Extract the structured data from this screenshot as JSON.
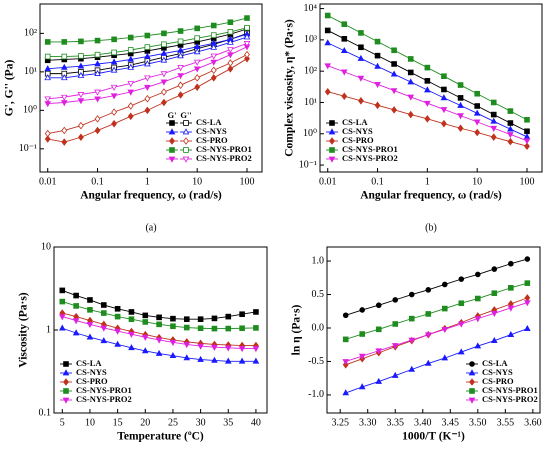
{
  "chart_data": [
    {
      "type": "line",
      "caption": "(a)",
      "xlabel": "Angular frequency, ω (rad/s)",
      "ylabel": "G', G'' (Pa)",
      "xlog": true,
      "ylog": true,
      "xlim": [
        0.007,
        200
      ],
      "ylim": [
        0.025,
        580
      ],
      "xticks": [
        0.01,
        0.1,
        1,
        10,
        100
      ],
      "yticks": [
        {
          "value": 0.1,
          "label": "10⁻¹"
        },
        {
          "value": 1,
          "label": "10⁰"
        },
        {
          "value": 10,
          "label": "10¹"
        },
        {
          "value": 100,
          "label": "10²"
        }
      ],
      "legend": "lower right",
      "legend_headers": [
        "G'",
        "G''"
      ],
      "x": [
        0.01,
        0.0215,
        0.0464,
        0.1,
        0.215,
        0.464,
        1,
        2.15,
        4.64,
        10,
        21.5,
        46.4,
        100
      ],
      "series": [
        {
          "name": "CS-LA",
          "color": "#000000",
          "marker": "square",
          "storage": [
            20,
            21,
            22,
            24,
            27,
            30,
            35,
            42,
            50,
            60,
            75,
            95,
            130
          ],
          "loss": [
            9,
            9,
            10,
            11,
            13,
            15,
            19,
            24,
            30,
            40,
            52,
            70,
            100
          ]
        },
        {
          "name": "CS-NYS",
          "color": "#1a1aff",
          "marker": "triangle",
          "storage": [
            12,
            13,
            14,
            16,
            18,
            21,
            25,
            30,
            36,
            45,
            55,
            70,
            95
          ],
          "loss": [
            7,
            7,
            8,
            9,
            11,
            13,
            16,
            20,
            26,
            33,
            43,
            58,
            80
          ]
        },
        {
          "name": "CS-PRO",
          "color": "#c0321e",
          "marker": "diamond",
          "storage": [
            0.18,
            0.15,
            0.2,
            0.3,
            0.45,
            0.7,
            1,
            1.6,
            2.5,
            4,
            7,
            12,
            22
          ],
          "loss": [
            0.25,
            0.3,
            0.4,
            0.6,
            0.9,
            1.3,
            2,
            3,
            4.5,
            7,
            11,
            17,
            28
          ]
        },
        {
          "name": "CS-NYS-PRO1",
          "color": "#1e8c1e",
          "marker": "square",
          "storage": [
            60,
            60,
            62,
            65,
            70,
            78,
            88,
            100,
            115,
            135,
            160,
            195,
            250
          ],
          "loss": [
            25,
            25,
            26,
            28,
            32,
            37,
            44,
            52,
            62,
            75,
            90,
            110,
            140
          ]
        },
        {
          "name": "CS-NYS-PRO2",
          "color": "#e020e0",
          "marker": "tridown",
          "storage": [
            1.5,
            1.6,
            1.8,
            2,
            2.4,
            3,
            4,
            5.5,
            8,
            12,
            18,
            28,
            45
          ],
          "loss": [
            2,
            2.2,
            2.6,
            3,
            4,
            5,
            7,
            9,
            13,
            18,
            26,
            38,
            55
          ]
        }
      ]
    },
    {
      "type": "line",
      "caption": "(b)",
      "xlabel": "Angular frequency, ω (rad/s)",
      "ylabel": "Complex viscosity, η* (Pa·s)",
      "xlog": true,
      "ylog": true,
      "xlim": [
        0.007,
        200
      ],
      "ylim": [
        0.06,
        14000
      ],
      "xticks": [
        0.01,
        0.1,
        1,
        10,
        100
      ],
      "yticks": [
        {
          "value": 0.1,
          "label": "10⁻¹"
        },
        {
          "value": 1,
          "label": "10⁰"
        },
        {
          "value": 10,
          "label": "10¹"
        },
        {
          "value": 100,
          "label": "10²"
        },
        {
          "value": 1000,
          "label": "10³"
        },
        {
          "value": 10000,
          "label": "10⁴"
        }
      ],
      "legend": "lower left",
      "x": [
        0.01,
        0.0215,
        0.0464,
        0.1,
        0.215,
        0.464,
        1,
        2.15,
        4.64,
        10,
        21.5,
        46.4,
        100
      ],
      "series": [
        {
          "name": "CS-LA",
          "color": "#000000",
          "marker": "square",
          "values": [
            2000,
            1080,
            580,
            313,
            170,
            91,
            49,
            26,
            14,
            7.7,
            4.1,
            2.2,
            1.2
          ]
        },
        {
          "name": "CS-NYS",
          "color": "#1a1aff",
          "marker": "triangle",
          "values": [
            800,
            450,
            253,
            142,
            80,
            45,
            25,
            14,
            8,
            4.5,
            2.5,
            1.4,
            0.8
          ]
        },
        {
          "name": "CS-PRO",
          "color": "#c0321e",
          "marker": "diamond",
          "values": [
            22,
            15.8,
            11.3,
            8.1,
            5.8,
            4.1,
            3,
            2.1,
            1.5,
            1.1,
            0.78,
            0.56,
            0.4
          ]
        },
        {
          "name": "CS-NYS-PRO1",
          "color": "#1e8c1e",
          "marker": "square",
          "values": [
            6000,
            3170,
            1670,
            880,
            465,
            246,
            130,
            69,
            36,
            19,
            10,
            5.3,
            2.8
          ]
        },
        {
          "name": "CS-NYS-PRO2",
          "color": "#e020e0",
          "marker": "tridown",
          "values": [
            150,
            95,
            60,
            38,
            24,
            15,
            9.5,
            6,
            3.8,
            2.4,
            1.5,
            0.95,
            0.6
          ]
        }
      ]
    },
    {
      "type": "line",
      "caption": "(c)",
      "xlabel": "Temperature (ºC)",
      "ylabel": "Viscosity (Pa·s)",
      "xlog": false,
      "ylog": true,
      "xlim": [
        3.5,
        42
      ],
      "ylim": [
        0.1,
        10
      ],
      "xticks": [
        5,
        10,
        15,
        20,
        25,
        30,
        35,
        40
      ],
      "yticks": [
        0.1,
        1,
        10
      ],
      "legend": "lower left",
      "x": [
        5,
        7.5,
        10,
        12.5,
        15,
        17.5,
        20,
        22.5,
        25,
        27.5,
        30,
        32.5,
        35,
        37.5,
        40
      ],
      "series": [
        {
          "name": "CS-LA",
          "color": "#000000",
          "marker": "square",
          "values": [
            3.0,
            2.6,
            2.3,
            2.0,
            1.8,
            1.65,
            1.5,
            1.42,
            1.37,
            1.35,
            1.35,
            1.38,
            1.45,
            1.55,
            1.65
          ]
        },
        {
          "name": "CS-NYS",
          "color": "#1a1aff",
          "marker": "triangle",
          "values": [
            1.05,
            0.92,
            0.82,
            0.74,
            0.67,
            0.61,
            0.56,
            0.52,
            0.49,
            0.46,
            0.44,
            0.43,
            0.42,
            0.42,
            0.42
          ]
        },
        {
          "name": "CS-PRO",
          "color": "#c0321e",
          "marker": "diamond",
          "values": [
            1.6,
            1.45,
            1.3,
            1.17,
            1.05,
            0.96,
            0.88,
            0.81,
            0.76,
            0.72,
            0.69,
            0.67,
            0.66,
            0.65,
            0.65
          ]
        },
        {
          "name": "CS-NYS-PRO1",
          "color": "#1e8c1e",
          "marker": "square",
          "values": [
            2.2,
            1.95,
            1.75,
            1.6,
            1.45,
            1.35,
            1.25,
            1.17,
            1.11,
            1.07,
            1.05,
            1.04,
            1.04,
            1.05,
            1.06
          ]
        },
        {
          "name": "CS-NYS-PRO2",
          "color": "#e020e0",
          "marker": "tridown",
          "values": [
            1.45,
            1.3,
            1.17,
            1.06,
            0.97,
            0.89,
            0.82,
            0.76,
            0.71,
            0.67,
            0.64,
            0.62,
            0.61,
            0.6,
            0.6
          ]
        }
      ]
    },
    {
      "type": "line",
      "caption": "(d)",
      "xlabel": "1000/T (K⁻¹)",
      "ylabel": "ln η (Pa·s)",
      "xlog": false,
      "ylog": false,
      "xlim": [
        3.226,
        3.613
      ],
      "ylim": [
        -1.27,
        1.21
      ],
      "xticks": [
        3.25,
        {
          "value": 3.3,
          "label": "3.30"
        },
        3.35,
        {
          "value": 3.4,
          "label": "3.40"
        },
        3.45,
        {
          "value": 3.5,
          "label": "3.50"
        },
        3.55,
        {
          "value": 3.6,
          "label": "3.60"
        }
      ],
      "yticks": [
        {
          "value": -1,
          "label": "-1.0"
        },
        -0.5,
        {
          "value": 0,
          "label": "0.0"
        },
        0.5,
        {
          "value": 1,
          "label": "1.0"
        }
      ],
      "legend": "lower right",
      "x": [
        3.26,
        3.29,
        3.32,
        3.35,
        3.38,
        3.41,
        3.44,
        3.47,
        3.5,
        3.53,
        3.56,
        3.59
      ],
      "series": [
        {
          "name": "CS-LA",
          "color": "#000000",
          "marker": "circle",
          "values": [
            0.19,
            0.27,
            0.34,
            0.42,
            0.5,
            0.57,
            0.65,
            0.73,
            0.8,
            0.88,
            0.96,
            1.03
          ]
        },
        {
          "name": "CS-NYS",
          "color": "#1a1aff",
          "marker": "triangle",
          "values": [
            -0.97,
            -0.88,
            -0.8,
            -0.71,
            -0.62,
            -0.53,
            -0.45,
            -0.36,
            -0.27,
            -0.19,
            -0.1,
            -0.01
          ]
        },
        {
          "name": "CS-PRO",
          "color": "#c0321e",
          "marker": "diamond",
          "values": [
            -0.55,
            -0.46,
            -0.37,
            -0.28,
            -0.19,
            -0.1,
            -0.01,
            0.08,
            0.18,
            0.27,
            0.36,
            0.45
          ]
        },
        {
          "name": "CS-NYS-PRO1",
          "color": "#1e8c1e",
          "marker": "square",
          "values": [
            -0.17,
            -0.09,
            -0.02,
            0.06,
            0.14,
            0.21,
            0.29,
            0.37,
            0.44,
            0.52,
            0.6,
            0.67
          ]
        },
        {
          "name": "CS-NYS-PRO2",
          "color": "#e020e0",
          "marker": "tridown",
          "values": [
            -0.5,
            -0.42,
            -0.34,
            -0.26,
            -0.18,
            -0.1,
            -0.02,
            0.06,
            0.14,
            0.22,
            0.3,
            0.38
          ]
        }
      ]
    }
  ]
}
